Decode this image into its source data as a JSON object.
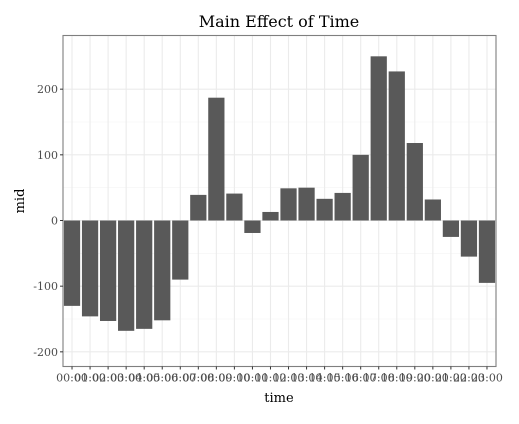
{
  "chart_data": {
    "type": "bar",
    "title": "Main Effect of Time",
    "xlabel": "time",
    "ylabel": "mid",
    "ylim": [
      -220,
      270
    ],
    "yticks": [
      -200,
      -100,
      0,
      100,
      200
    ],
    "grid": true,
    "legend": "none",
    "bar_color": "#595959",
    "categories": [
      "00:00",
      "01:00",
      "02:00",
      "03:00",
      "04:00",
      "05:00",
      "06:00",
      "07:00",
      "08:00",
      "09:00",
      "10:00",
      "11:00",
      "12:00",
      "13:00",
      "14:00",
      "15:00",
      "16:00",
      "17:00",
      "18:00",
      "19:00",
      "20:00",
      "21:00",
      "22:00",
      "23:00"
    ],
    "values": [
      -130,
      -146,
      -153,
      -168,
      -165,
      -152,
      -90,
      39,
      187,
      41,
      -19,
      13,
      49,
      50,
      33,
      42,
      100,
      250,
      227,
      118,
      32,
      -25,
      -55,
      -95
    ]
  }
}
